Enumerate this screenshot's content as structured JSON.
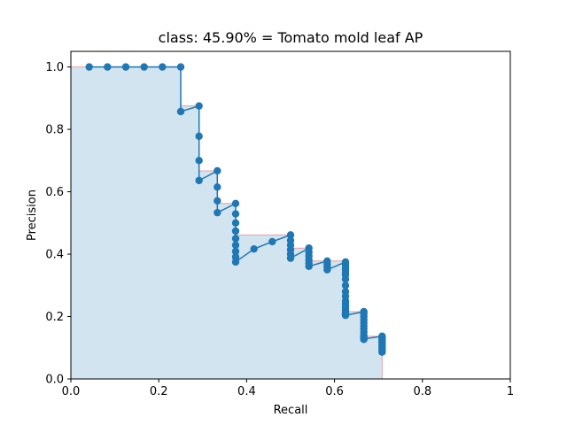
{
  "chart_data": {
    "type": "line",
    "title": "class: 45.90% = Tomato mold leaf AP",
    "xlabel": "Recall",
    "ylabel": "Precision",
    "xlim": [
      0,
      1
    ],
    "ylim": [
      0,
      1.05
    ],
    "xticks": [
      "0.0",
      "0.2",
      "0.4",
      "0.6",
      "0.8",
      "1"
    ],
    "yticks": [
      "0.0",
      "0.2",
      "0.4",
      "0.6",
      "0.8",
      "1.0"
    ],
    "xtick_values": [
      0,
      0.2,
      0.4,
      0.6,
      0.8,
      1.0
    ],
    "ytick_values": [
      0,
      0.2,
      0.4,
      0.6,
      0.8,
      1.0
    ],
    "grid": false,
    "colors": {
      "series": "#1f77b4",
      "area_fill": "#1f77b4",
      "area_edge": "#e8a0a0"
    },
    "series": [
      {
        "x": [
          0.0417,
          0.0833,
          0.125,
          0.1667,
          0.2083,
          0.25,
          0.25,
          0.2917,
          0.2917,
          0.2917,
          0.2917,
          0.3333,
          0.3333,
          0.3333,
          0.3333,
          0.375,
          0.375,
          0.375,
          0.375,
          0.375,
          0.375,
          0.375,
          0.375,
          0.375,
          0.4167,
          0.4583,
          0.5,
          0.5,
          0.5,
          0.5,
          0.5,
          0.5,
          0.5417,
          0.5417,
          0.5417,
          0.5417,
          0.5417,
          0.5417,
          0.5833,
          0.5833,
          0.5833,
          0.5833,
          0.625,
          0.625,
          0.625,
          0.625,
          0.625,
          0.625,
          0.625,
          0.625,
          0.625,
          0.625,
          0.625,
          0.625,
          0.625,
          0.625,
          0.625,
          0.625,
          0.625,
          0.625,
          0.625,
          0.625,
          0.6667,
          0.6667,
          0.6667,
          0.6667,
          0.6667,
          0.6667,
          0.6667,
          0.6667,
          0.6667,
          0.6667,
          0.6667,
          0.6667,
          0.6667,
          0.6667,
          0.7083,
          0.7083,
          0.7083,
          0.7083,
          0.7083,
          0.7083,
          0.7083,
          0.7083,
          0.7083,
          0.7083,
          0.7083,
          0.7083
        ],
        "y": [
          1.0,
          1.0,
          1.0,
          1.0,
          1.0,
          1.0,
          0.857,
          0.875,
          0.778,
          0.7,
          0.636,
          0.667,
          0.615,
          0.571,
          0.533,
          0.5625,
          0.529,
          0.5,
          0.474,
          0.45,
          0.429,
          0.409,
          0.391,
          0.375,
          0.4167,
          0.44,
          0.4615,
          0.444,
          0.429,
          0.414,
          0.4,
          0.387,
          0.4194,
          0.406,
          0.394,
          0.382,
          0.371,
          0.361,
          0.378,
          0.368,
          0.359,
          0.35,
          0.375,
          0.366,
          0.357,
          0.349,
          0.34,
          0.333,
          0.32,
          0.3,
          0.28,
          0.265,
          0.25,
          0.24,
          0.23,
          0.222,
          0.215,
          0.21,
          0.205,
          0.208,
          0.206,
          0.204,
          0.2157,
          0.21,
          0.2,
          0.19,
          0.18,
          0.17,
          0.16,
          0.15,
          0.14,
          0.135,
          0.13,
          0.127,
          0.13,
          0.128,
          0.1371,
          0.132,
          0.128,
          0.124,
          0.12,
          0.115,
          0.11,
          0.105,
          0.1,
          0.095,
          0.09,
          0.086
        ]
      }
    ],
    "interpolated_precision": {
      "x": [
        0,
        0.25,
        0.25,
        0.2917,
        0.2917,
        0.3333,
        0.3333,
        0.375,
        0.375,
        0.5,
        0.5,
        0.5417,
        0.5417,
        0.625,
        0.625,
        0.6667,
        0.6667,
        0.7083,
        0.7083
      ],
      "y": [
        1.0,
        1.0,
        0.875,
        0.875,
        0.667,
        0.667,
        0.5625,
        0.5625,
        0.4615,
        0.4615,
        0.4194,
        0.4194,
        0.378,
        0.378,
        0.2157,
        0.2157,
        0.1371,
        0.1371,
        0
      ]
    }
  }
}
